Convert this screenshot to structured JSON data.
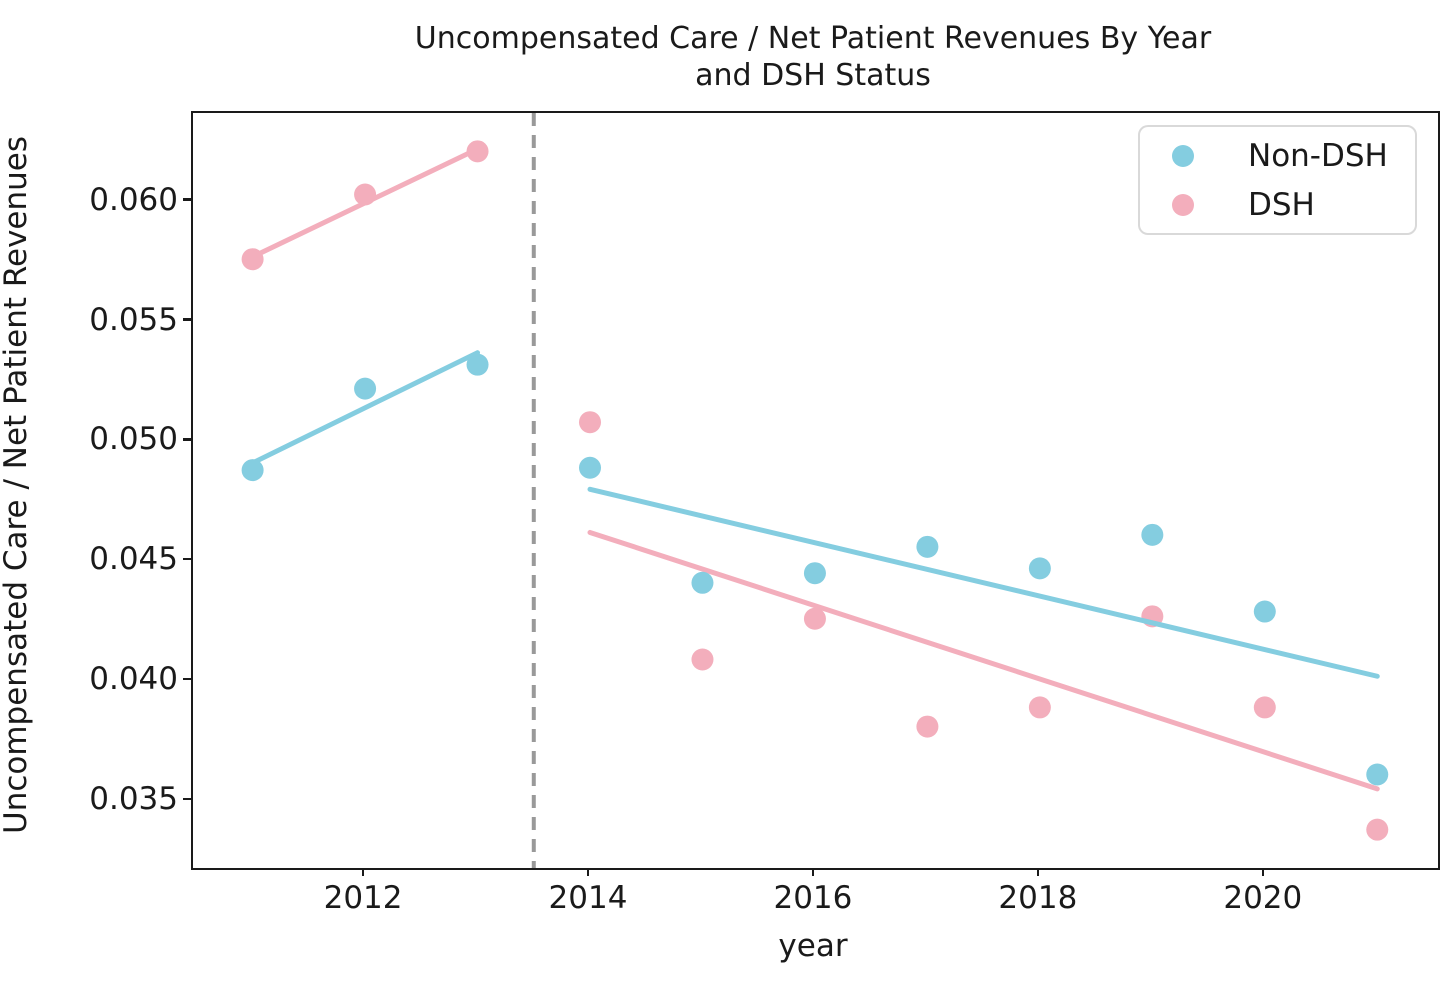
{
  "chart_data": {
    "type": "scatter",
    "title_lines": [
      "Uncompensated Care / Net Patient Revenues By Year",
      "and DSH Status"
    ],
    "xlabel": "year",
    "ylabel": "Uncompensated Care / Net Patient Revenues",
    "xlim": [
      2010.47,
      2021.54
    ],
    "ylim": [
      0.0322,
      0.0637
    ],
    "grid": false,
    "x_ticks": [
      {
        "v": 2012,
        "label": "2012"
      },
      {
        "v": 2014,
        "label": "2014"
      },
      {
        "v": 2016,
        "label": "2016"
      },
      {
        "v": 2018,
        "label": "2018"
      },
      {
        "v": 2020,
        "label": "2020"
      }
    ],
    "y_ticks": [
      {
        "v": 0.035,
        "label": "0.035"
      },
      {
        "v": 0.04,
        "label": "0.040"
      },
      {
        "v": 0.045,
        "label": "0.045"
      },
      {
        "v": 0.05,
        "label": "0.050"
      },
      {
        "v": 0.055,
        "label": "0.055"
      },
      {
        "v": 0.06,
        "label": "0.060"
      }
    ],
    "legend": {
      "position": "upper right",
      "items": [
        {
          "name": "Non-DSH",
          "color": "#84cde0"
        },
        {
          "name": "DSH",
          "color": "#f3aebc"
        }
      ]
    },
    "series": [
      {
        "name": "DSH",
        "color": "#f3aebc",
        "x": [
          2011,
          2012,
          2013,
          2014,
          2015,
          2016,
          2017,
          2018,
          2019,
          2020,
          2021
        ],
        "y": [
          0.0576,
          0.0603,
          0.0621,
          0.0508,
          0.0409,
          0.0426,
          0.0381,
          0.0389,
          0.0427,
          0.0389,
          0.0338
        ]
      },
      {
        "name": "Non-DSH",
        "color": "#84cde0",
        "x": [
          2011,
          2012,
          2013,
          2014,
          2015,
          2016,
          2017,
          2018,
          2019,
          2020,
          2021
        ],
        "y": [
          0.0488,
          0.0522,
          0.0532,
          0.0489,
          0.0441,
          0.0445,
          0.0456,
          0.0447,
          0.0461,
          0.0429,
          0.0361
        ]
      }
    ],
    "trendlines": [
      {
        "series": "DSH",
        "color": "#f3aebc",
        "x": [
          2011,
          2013
        ],
        "y": [
          0.0577,
          0.0622
        ]
      },
      {
        "series": "Non-DSH",
        "color": "#84cde0",
        "x": [
          2011,
          2013
        ],
        "y": [
          0.0491,
          0.0537
        ]
      },
      {
        "series": "DSH",
        "color": "#f3aebc",
        "x": [
          2014,
          2021
        ],
        "y": [
          0.0462,
          0.0355
        ]
      },
      {
        "series": "Non-DSH",
        "color": "#84cde0",
        "x": [
          2014,
          2021
        ],
        "y": [
          0.048,
          0.0402
        ]
      }
    ],
    "vline": {
      "x": 2013.5,
      "style": "dashed",
      "color": "#999999"
    }
  }
}
